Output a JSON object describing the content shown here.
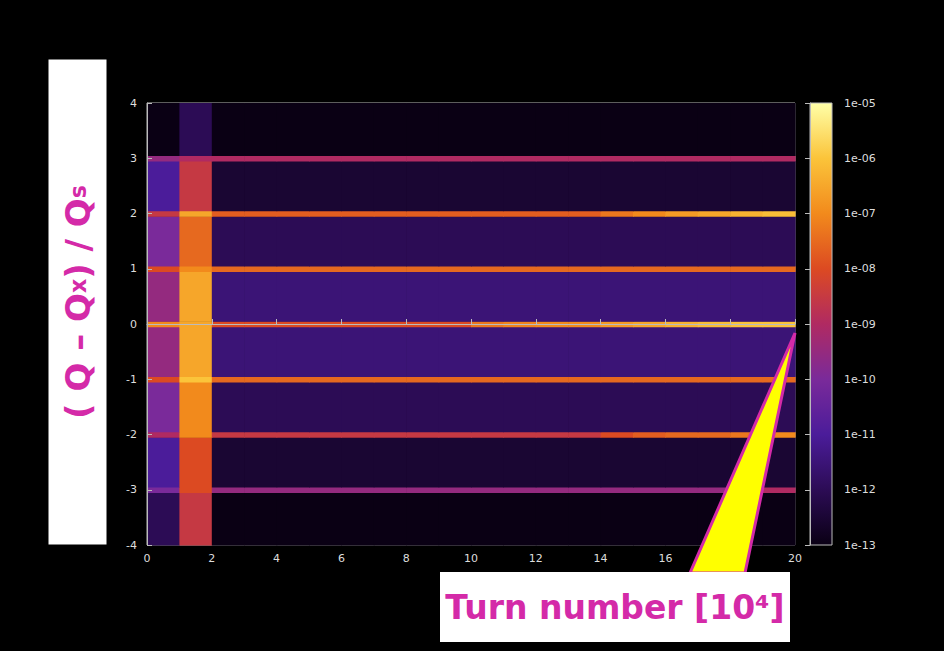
{
  "chart_data": {
    "type": "heatmap",
    "x_label": "Turn number [10⁴]",
    "y_label": "( Q – Qx ) / Qs",
    "xlim": [
      0,
      20
    ],
    "xticks": [
      0,
      2,
      4,
      6,
      8,
      10,
      12,
      14,
      16,
      18,
      20
    ],
    "ylim": [
      -4,
      4
    ],
    "yticks": [
      -4,
      -3,
      -2,
      -1,
      0,
      1,
      2,
      3,
      4
    ],
    "x_bins": [
      0,
      1,
      2,
      3,
      4,
      5,
      6,
      7,
      8,
      9,
      10,
      11,
      12,
      13,
      14,
      15,
      16,
      17,
      18,
      19,
      20
    ],
    "y_bins": [
      -4,
      -3.05,
      -2.95,
      -2.05,
      -1.95,
      -1.05,
      -0.95,
      -0.05,
      0.05,
      0.95,
      1.05,
      1.95,
      2.05,
      2.95,
      3.05,
      4
    ],
    "cells": [
      [
        1e-12,
        3e-09,
        1e-13,
        1e-13,
        1e-13,
        1e-13,
        1e-13,
        1e-13,
        1e-13,
        1e-13,
        1e-13,
        1e-13,
        1e-13,
        1e-13,
        1e-13,
        1e-13,
        1e-13,
        1e-13,
        1e-13,
        1e-13
      ],
      [
        1e-10,
        1e-08,
        3e-10,
        3e-10,
        3e-10,
        3e-10,
        3e-10,
        3e-10,
        3e-10,
        3e-10,
        3e-10,
        3e-10,
        3e-10,
        3e-10,
        3e-10,
        3e-10,
        3e-10,
        3e-10,
        5e-10,
        1e-09
      ],
      [
        1e-11,
        1e-08,
        3e-13,
        3e-13,
        3e-13,
        3e-13,
        3e-13,
        3e-13,
        3e-13,
        3e-13,
        3e-13,
        3e-13,
        3e-13,
        3e-13,
        3e-13,
        3e-13,
        3e-13,
        3e-13,
        3e-13,
        3e-13
      ],
      [
        1e-09,
        1e-07,
        3e-09,
        3e-09,
        3e-09,
        3e-09,
        3e-09,
        3e-09,
        3e-09,
        3e-09,
        3e-09,
        3e-09,
        3e-09,
        3e-09,
        1e-08,
        2e-08,
        3e-08,
        3e-08,
        5e-08,
        1e-07
      ],
      [
        1e-10,
        1e-07,
        1e-12,
        1e-12,
        1e-12,
        1e-12,
        1e-12,
        1e-12,
        1e-12,
        1e-12,
        1e-12,
        1e-12,
        1e-12,
        1e-12,
        1e-12,
        1e-12,
        1e-12,
        1e-12,
        1e-12,
        1e-12
      ],
      [
        1e-08,
        1e-06,
        3e-08,
        3e-08,
        3e-08,
        3e-08,
        3e-08,
        3e-08,
        3e-08,
        3e-08,
        3e-08,
        3e-08,
        3e-08,
        3e-08,
        3e-08,
        3e-08,
        3e-08,
        3e-08,
        3e-08,
        3e-08
      ],
      [
        3e-10,
        3e-07,
        3e-12,
        3e-12,
        3e-12,
        3e-12,
        3e-12,
        3e-12,
        3e-12,
        3e-12,
        3e-12,
        3e-12,
        3e-12,
        3e-12,
        3e-12,
        3e-12,
        3e-12,
        3e-12,
        3e-12,
        3e-12
      ],
      [
        1e-07,
        3e-07,
        1e-08,
        1e-08,
        1e-08,
        1e-08,
        1e-08,
        1e-08,
        1e-08,
        1e-08,
        5e-08,
        8e-08,
        1e-07,
        1e-07,
        2e-07,
        3e-07,
        5e-07,
        8e-07,
        1e-06,
        1e-06
      ],
      [
        3e-10,
        3e-07,
        3e-12,
        3e-12,
        3e-12,
        3e-12,
        3e-12,
        3e-12,
        3e-12,
        3e-12,
        3e-12,
        3e-12,
        3e-12,
        3e-12,
        3e-12,
        3e-12,
        3e-12,
        3e-12,
        3e-12,
        3e-12
      ],
      [
        1e-08,
        1e-07,
        3e-08,
        3e-08,
        3e-08,
        3e-08,
        3e-08,
        3e-08,
        3e-08,
        3e-08,
        3e-08,
        3e-08,
        3e-08,
        3e-08,
        3e-08,
        3e-08,
        3e-08,
        3e-08,
        3e-08,
        3e-08
      ],
      [
        1e-10,
        3e-08,
        1e-12,
        1e-12,
        1e-12,
        1e-12,
        1e-12,
        1e-12,
        1e-12,
        1e-12,
        1e-12,
        1e-12,
        1e-12,
        1e-12,
        1e-12,
        1e-12,
        1e-12,
        1e-12,
        1e-12,
        1e-12
      ],
      [
        3e-09,
        3e-07,
        2e-08,
        2e-08,
        2e-08,
        2e-08,
        2e-08,
        2e-08,
        2e-08,
        2e-08,
        2e-08,
        2e-08,
        2e-08,
        2e-08,
        5e-08,
        1e-07,
        2e-07,
        3e-07,
        5e-07,
        8e-07
      ],
      [
        1e-11,
        3e-09,
        3e-13,
        3e-13,
        3e-13,
        3e-13,
        3e-13,
        3e-13,
        3e-13,
        3e-13,
        3e-13,
        3e-13,
        3e-13,
        3e-13,
        3e-13,
        3e-13,
        3e-13,
        3e-13,
        3e-13,
        3e-13
      ],
      [
        3e-10,
        1e-09,
        1e-09,
        1e-09,
        1e-09,
        1e-09,
        1e-09,
        1e-09,
        1e-09,
        1e-09,
        1e-09,
        1e-09,
        1e-09,
        1e-09,
        1e-09,
        1e-09,
        1e-09,
        1e-09,
        1e-09,
        1e-09
      ],
      [
        1e-13,
        1e-12,
        1e-13,
        1e-13,
        1e-13,
        1e-13,
        1e-13,
        1e-13,
        1e-13,
        1e-13,
        1e-13,
        1e-13,
        1e-13,
        1e-13,
        1e-13,
        1e-13,
        1e-13,
        1e-13,
        1e-13,
        1e-13
      ]
    ],
    "colorbar": {
      "range": [
        1e-13,
        1e-05
      ],
      "log": true,
      "ticks": [
        {
          "value": 1e-13,
          "label": "1e-13"
        },
        {
          "value": 1e-12,
          "label": "1e-12"
        },
        {
          "value": 1e-11,
          "label": "1e-11"
        },
        {
          "value": 1e-10,
          "label": "1e-10"
        },
        {
          "value": 1e-09,
          "label": "1e-09"
        },
        {
          "value": 1e-08,
          "label": "1e-08"
        },
        {
          "value": 1e-07,
          "label": "1e-07"
        },
        {
          "value": 1e-06,
          "label": "1e-06"
        },
        {
          "value": 1e-05,
          "label": "1e-05"
        }
      ]
    }
  }
}
